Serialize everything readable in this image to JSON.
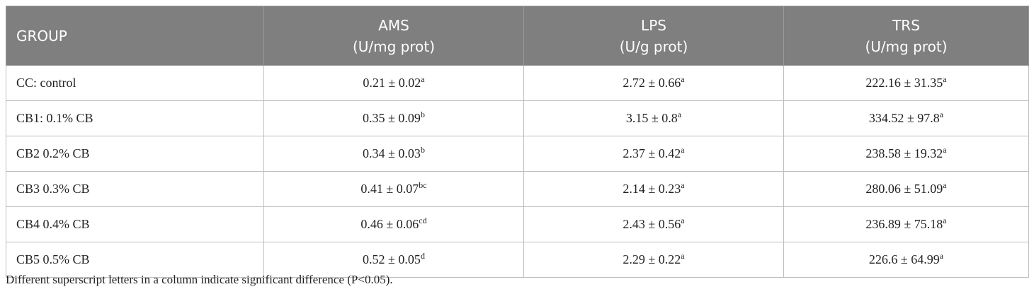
{
  "table": {
    "header": [
      [
        "GROUP"
      ],
      [
        "AMS",
        "(U/mg prot)"
      ],
      [
        "LPS",
        "(U/g prot)"
      ],
      [
        "TRS",
        "(U/mg prot)"
      ]
    ],
    "rows": [
      [
        "CC: control",
        {
          "text": "0.21 ± 0.02",
          "sup": "a"
        },
        {
          "text": "2.72 ± 0.66",
          "sup": "a"
        },
        {
          "text": "222.16 ± 31.35",
          "sup": "a"
        }
      ],
      [
        "CB1: 0.1% CB",
        {
          "text": "0.35 ± 0.09",
          "sup": "b"
        },
        {
          "text": "3.15 ± 0.8",
          "sup": "a"
        },
        {
          "text": "334.52 ± 97.8",
          "sup": "a"
        }
      ],
      [
        "CB2 0.2% CB",
        {
          "text": "0.34 ± 0.03",
          "sup": "b"
        },
        {
          "text": "2.37 ± 0.42",
          "sup": "a"
        },
        {
          "text": "238.58 ± 19.32",
          "sup": "a"
        }
      ],
      [
        "CB3 0.3% CB",
        {
          "text": "0.41 ± 0.07",
          "sup": "bc"
        },
        {
          "text": "2.14 ± 0.23",
          "sup": "a"
        },
        {
          "text": "280.06 ± 51.09",
          "sup": "a"
        }
      ],
      [
        "CB4 0.4% CB",
        {
          "text": "0.46 ± 0.06",
          "sup": "cd"
        },
        {
          "text": "2.43 ± 0.56",
          "sup": "a"
        },
        {
          "text": "236.89 ± 75.18",
          "sup": "a"
        }
      ],
      [
        "CB5 0.5% CB",
        {
          "text": "0.52 ± 0.05",
          "sup": "d"
        },
        {
          "text": "2.29 ± 0.22",
          "sup": "a"
        },
        {
          "text": "226.6 ± 64.99",
          "sup": "a"
        }
      ]
    ],
    "footnote": "Different superscript letters in a column indicate significant difference (P<0.05)."
  }
}
